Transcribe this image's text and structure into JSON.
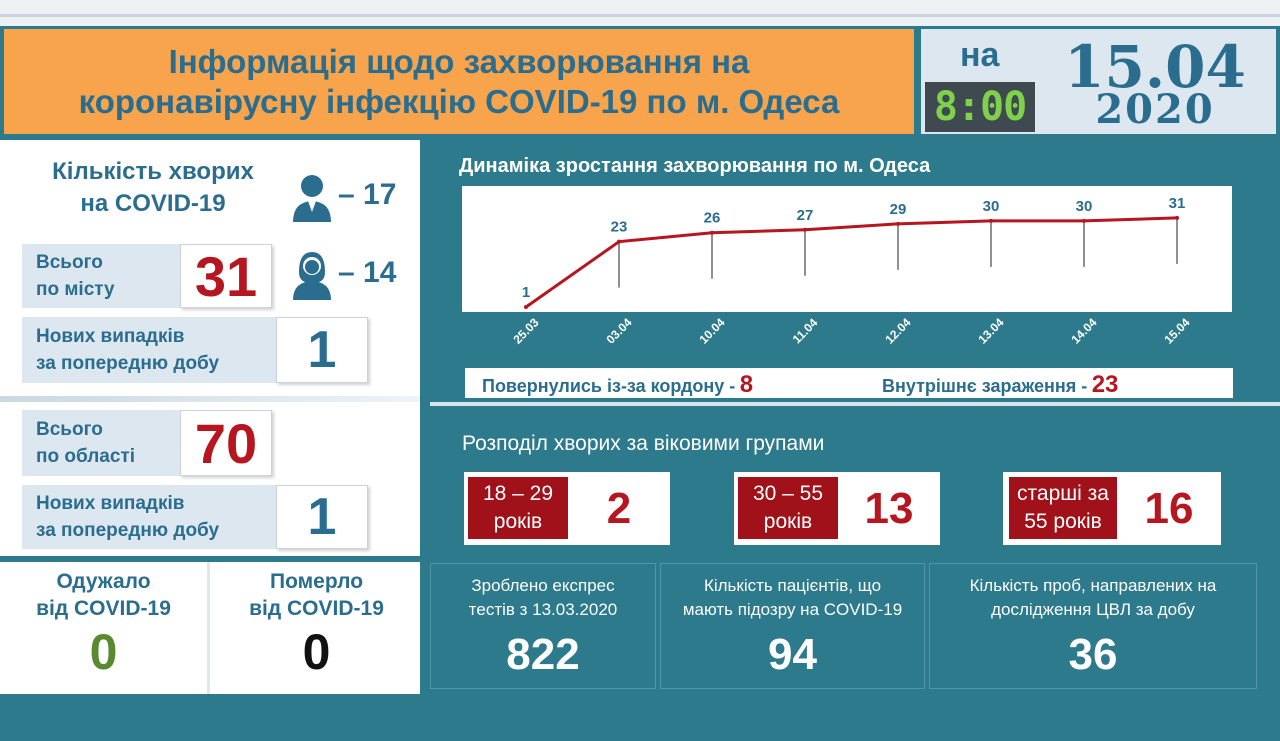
{
  "header": {
    "title_line1": "Інформація щодо захворювання на",
    "title_line2": "коронавірусну інфекцію COVID-19 по м. Одеса"
  },
  "date": {
    "prefix": "на",
    "time": "8:00",
    "day_month": "15.04",
    "year": "2020"
  },
  "patients": {
    "title_line1": "Кількість хворих",
    "title_line2": "на COVID-19",
    "male_count": "17",
    "female_count": "14",
    "dash": "–"
  },
  "city": {
    "total_label_line1": "Всього",
    "total_label_line2": "по місту",
    "total_value": "31",
    "new_label_line1": "Нових випадків",
    "new_label_line2": "за попередню добу",
    "new_value": "1"
  },
  "region": {
    "total_label_line1": "Всього",
    "total_label_line2": "по області",
    "total_value": "70",
    "new_label_line1": "Нових випадків",
    "new_label_line2": "за попередню добу",
    "new_value": "1"
  },
  "outcomes": {
    "recovered_line1": "Одужало",
    "recovered_line2": "від COVID-19",
    "recovered_value": "0",
    "died_line1": "Померло",
    "died_line2": "від COVID-19",
    "died_value": "0"
  },
  "chart_data": {
    "type": "line",
    "title": "Динаміка зростання захворювання по м. Одеса",
    "categories": [
      "25.03",
      "03.04",
      "10.04",
      "11.04",
      "12.04",
      "13.04",
      "14.04",
      "15.04"
    ],
    "values": [
      1,
      23,
      26,
      27,
      29,
      30,
      30,
      31
    ],
    "ylim": [
      0,
      35
    ],
    "line_color": "#b5161f",
    "grid": false
  },
  "sources": {
    "returned_label": "Повернулись із-за кордону -",
    "returned_value": "8",
    "internal_label": "Внутрішнє зараження -",
    "internal_value": "23"
  },
  "age_groups": {
    "title": "Розподіл хворих за віковими групами",
    "groups": [
      {
        "label_line1": "18 – 29",
        "label_line2": "років",
        "value": "2"
      },
      {
        "label_line1": "30 – 55",
        "label_line2": "років",
        "value": "13"
      },
      {
        "label_line1": "старші за",
        "label_line2": "55 років",
        "value": "16"
      }
    ]
  },
  "stats": [
    {
      "label_line1": "Зроблено експрес",
      "label_line2": "тестів з 13.03.2020",
      "value": "822"
    },
    {
      "label_line1": "Кількість пацієнтів, що",
      "label_line2": "мають підозру на COVID-19",
      "value": "94"
    },
    {
      "label_line1": "Кількість проб, направлених на",
      "label_line2": "дослідження ЦВЛ за добу",
      "value": "36"
    }
  ],
  "colors": {
    "accent_orange": "#f7a44c",
    "brand_blue": "#2b6d8e",
    "teal_bg": "#2d7a8c",
    "alert_red": "#b5161f",
    "recovered_green": "#5a8a2f"
  }
}
